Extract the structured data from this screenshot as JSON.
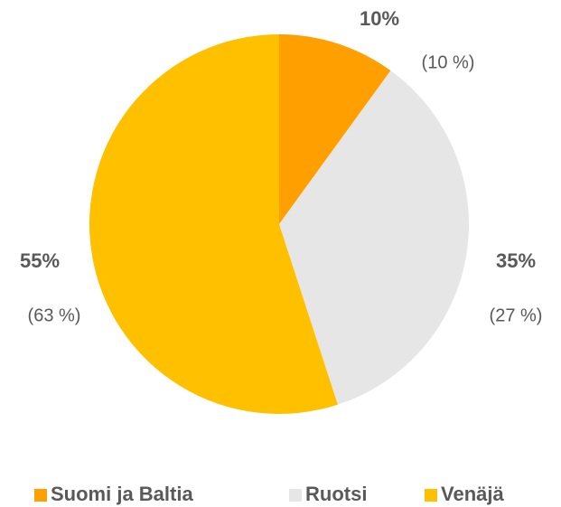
{
  "chart_data": {
    "type": "pie",
    "categories": [
      "Suomi ja Baltia",
      "Ruotsi",
      "Venäjä"
    ],
    "values": [
      10,
      35,
      55
    ],
    "value_labels": [
      "10%",
      "35%",
      "55%"
    ],
    "secondary_labels": [
      "(10 %)",
      "(27 %)",
      "(63 %)"
    ],
    "colors": [
      "#FFA000",
      "#E6E6E6",
      "#FFC000"
    ],
    "legend": "bottom"
  }
}
